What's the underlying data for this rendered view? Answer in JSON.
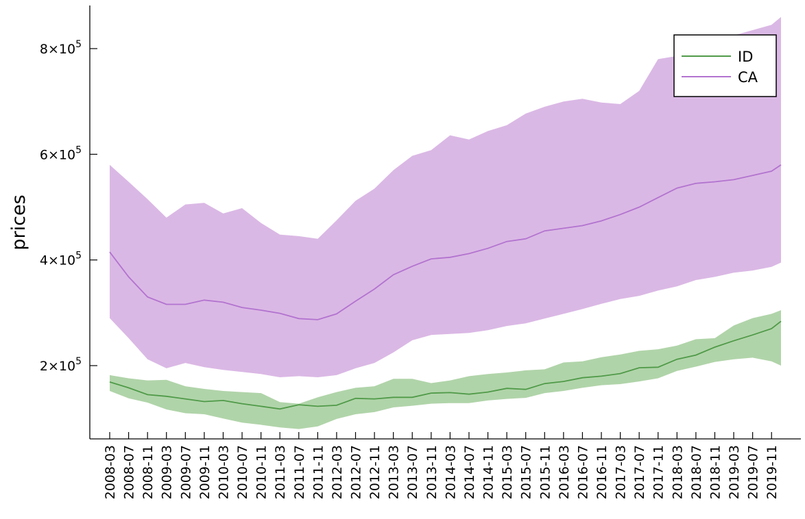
{
  "chart_data": {
    "type": "line",
    "title": "",
    "xlabel": "",
    "ylabel": "prices",
    "x_tick_labels": [
      "2008-03",
      "2008-07",
      "2008-11",
      "2009-03",
      "2009-07",
      "2009-11",
      "2010-03",
      "2010-07",
      "2010-11",
      "2011-03",
      "2011-07",
      "2011-11",
      "2012-03",
      "2012-07",
      "2012-11",
      "2013-03",
      "2013-07",
      "2013-11",
      "2014-03",
      "2014-07",
      "2014-11",
      "2015-03",
      "2015-07",
      "2015-11",
      "2016-03",
      "2016-07",
      "2016-11",
      "2017-03",
      "2017-07",
      "2017-11",
      "2018-03",
      "2018-07",
      "2018-11",
      "2019-03",
      "2019-07",
      "2019-11"
    ],
    "y_ticks": [
      {
        "value": 200000,
        "mantissa": "2",
        "exp": "5"
      },
      {
        "value": 400000,
        "mantissa": "4",
        "exp": "5"
      },
      {
        "value": 600000,
        "mantissa": "6",
        "exp": "5"
      },
      {
        "value": 800000,
        "mantissa": "8",
        "exp": "5"
      }
    ],
    "times_symbol": "×10",
    "ylim": [
      80000,
      860000
    ],
    "x_start": "2008-03",
    "x_end": "2020-01",
    "legend_position": "top-right",
    "grid": false,
    "series": [
      {
        "name": "ID",
        "color": "#4f9a48",
        "band_color": "#b0d4a9",
        "x": [
          "2008-03",
          "2008-07",
          "2008-11",
          "2009-03",
          "2009-07",
          "2009-11",
          "2010-03",
          "2010-07",
          "2010-11",
          "2011-03",
          "2011-07",
          "2011-11",
          "2012-03",
          "2012-07",
          "2012-11",
          "2013-03",
          "2013-07",
          "2013-11",
          "2014-03",
          "2014-07",
          "2014-11",
          "2015-03",
          "2015-07",
          "2015-11",
          "2016-03",
          "2016-07",
          "2016-11",
          "2017-03",
          "2017-07",
          "2017-11",
          "2018-03",
          "2018-07",
          "2018-11",
          "2019-03",
          "2019-07",
          "2019-11",
          "2020-01"
        ],
        "mean": [
          169000,
          158000,
          145000,
          142000,
          137000,
          132000,
          134000,
          128000,
          123000,
          118000,
          126000,
          123000,
          125000,
          138000,
          137000,
          140000,
          140000,
          148000,
          149000,
          146000,
          150000,
          157000,
          155000,
          166000,
          170000,
          177000,
          180000,
          185000,
          196000,
          197000,
          212000,
          220000,
          235000,
          247000,
          258000,
          270000,
          284000
        ],
        "lower": [
          152000,
          138000,
          130000,
          117000,
          110000,
          108000,
          100000,
          92000,
          88000,
          83000,
          80000,
          85000,
          99000,
          108000,
          112000,
          121000,
          124000,
          128000,
          129000,
          129000,
          134000,
          137000,
          139000,
          148000,
          152000,
          158000,
          163000,
          165000,
          170000,
          176000,
          190000,
          198000,
          207000,
          212000,
          215000,
          208000,
          200000
        ],
        "upper": [
          182000,
          176000,
          172000,
          173000,
          161000,
          156000,
          152000,
          150000,
          148000,
          131000,
          128000,
          140000,
          150000,
          158000,
          161000,
          175000,
          175000,
          167000,
          172000,
          180000,
          184000,
          187000,
          191000,
          193000,
          206000,
          208000,
          216000,
          221000,
          228000,
          231000,
          238000,
          250000,
          252000,
          276000,
          290000,
          298000,
          305000
        ]
      },
      {
        "name": "CA",
        "color": "#b273cf",
        "band_color": "#dab8e5",
        "x": [
          "2008-03",
          "2008-07",
          "2008-11",
          "2009-03",
          "2009-07",
          "2009-11",
          "2010-03",
          "2010-07",
          "2010-11",
          "2011-03",
          "2011-07",
          "2011-11",
          "2012-03",
          "2012-07",
          "2012-11",
          "2013-03",
          "2013-07",
          "2013-11",
          "2014-03",
          "2014-07",
          "2014-11",
          "2015-03",
          "2015-07",
          "2015-11",
          "2016-03",
          "2016-07",
          "2016-11",
          "2017-03",
          "2017-07",
          "2017-11",
          "2018-03",
          "2018-07",
          "2018-11",
          "2019-03",
          "2019-07",
          "2019-11",
          "2020-01"
        ],
        "mean": [
          415000,
          368000,
          330000,
          316000,
          316000,
          324000,
          320000,
          310000,
          305000,
          299000,
          289000,
          287000,
          298000,
          322000,
          345000,
          372000,
          388000,
          402000,
          405000,
          412000,
          422000,
          435000,
          440000,
          455000,
          460000,
          465000,
          474000,
          486000,
          500000,
          518000,
          536000,
          545000,
          548000,
          552000,
          560000,
          568000,
          580000
        ],
        "lower": [
          290000,
          252000,
          212000,
          195000,
          205000,
          197000,
          192000,
          188000,
          184000,
          178000,
          180000,
          178000,
          182000,
          195000,
          205000,
          225000,
          248000,
          258000,
          260000,
          262000,
          267000,
          275000,
          280000,
          289000,
          298000,
          307000,
          317000,
          326000,
          332000,
          342000,
          350000,
          362000,
          368000,
          376000,
          380000,
          387000,
          395000
        ],
        "upper": [
          580000,
          548000,
          515000,
          480000,
          505000,
          508000,
          488000,
          498000,
          470000,
          448000,
          445000,
          440000,
          475000,
          512000,
          535000,
          570000,
          597000,
          608000,
          636000,
          628000,
          644000,
          655000,
          677000,
          690000,
          700000,
          705000,
          698000,
          695000,
          720000,
          780000,
          786000,
          800000,
          815000,
          825000,
          835000,
          845000,
          860000
        ]
      }
    ]
  }
}
